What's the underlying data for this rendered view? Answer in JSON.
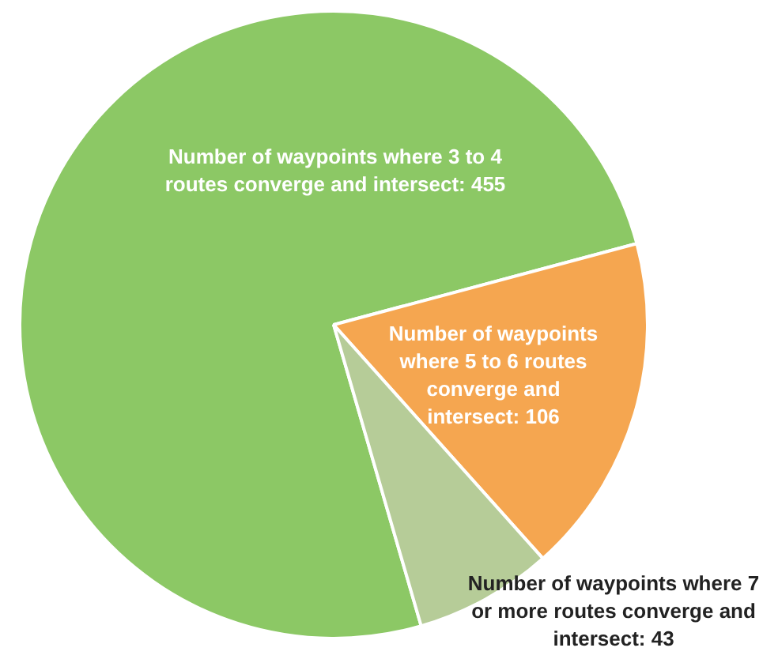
{
  "chart_data": {
    "type": "pie",
    "categories": [
      "Number of waypoints where 3 to 4 routes converge and intersect",
      "Number of waypoints where 5 to 6 routes converge and intersect",
      "Number of waypoints where 7 or more routes converge and intersect"
    ],
    "values": [
      455,
      106,
      43
    ],
    "colors": [
      "#8cc865",
      "#f5a650",
      "#b6cc98"
    ],
    "value_labels": [
      ": 455",
      ": 106",
      ": 43"
    ],
    "legend": false
  }
}
